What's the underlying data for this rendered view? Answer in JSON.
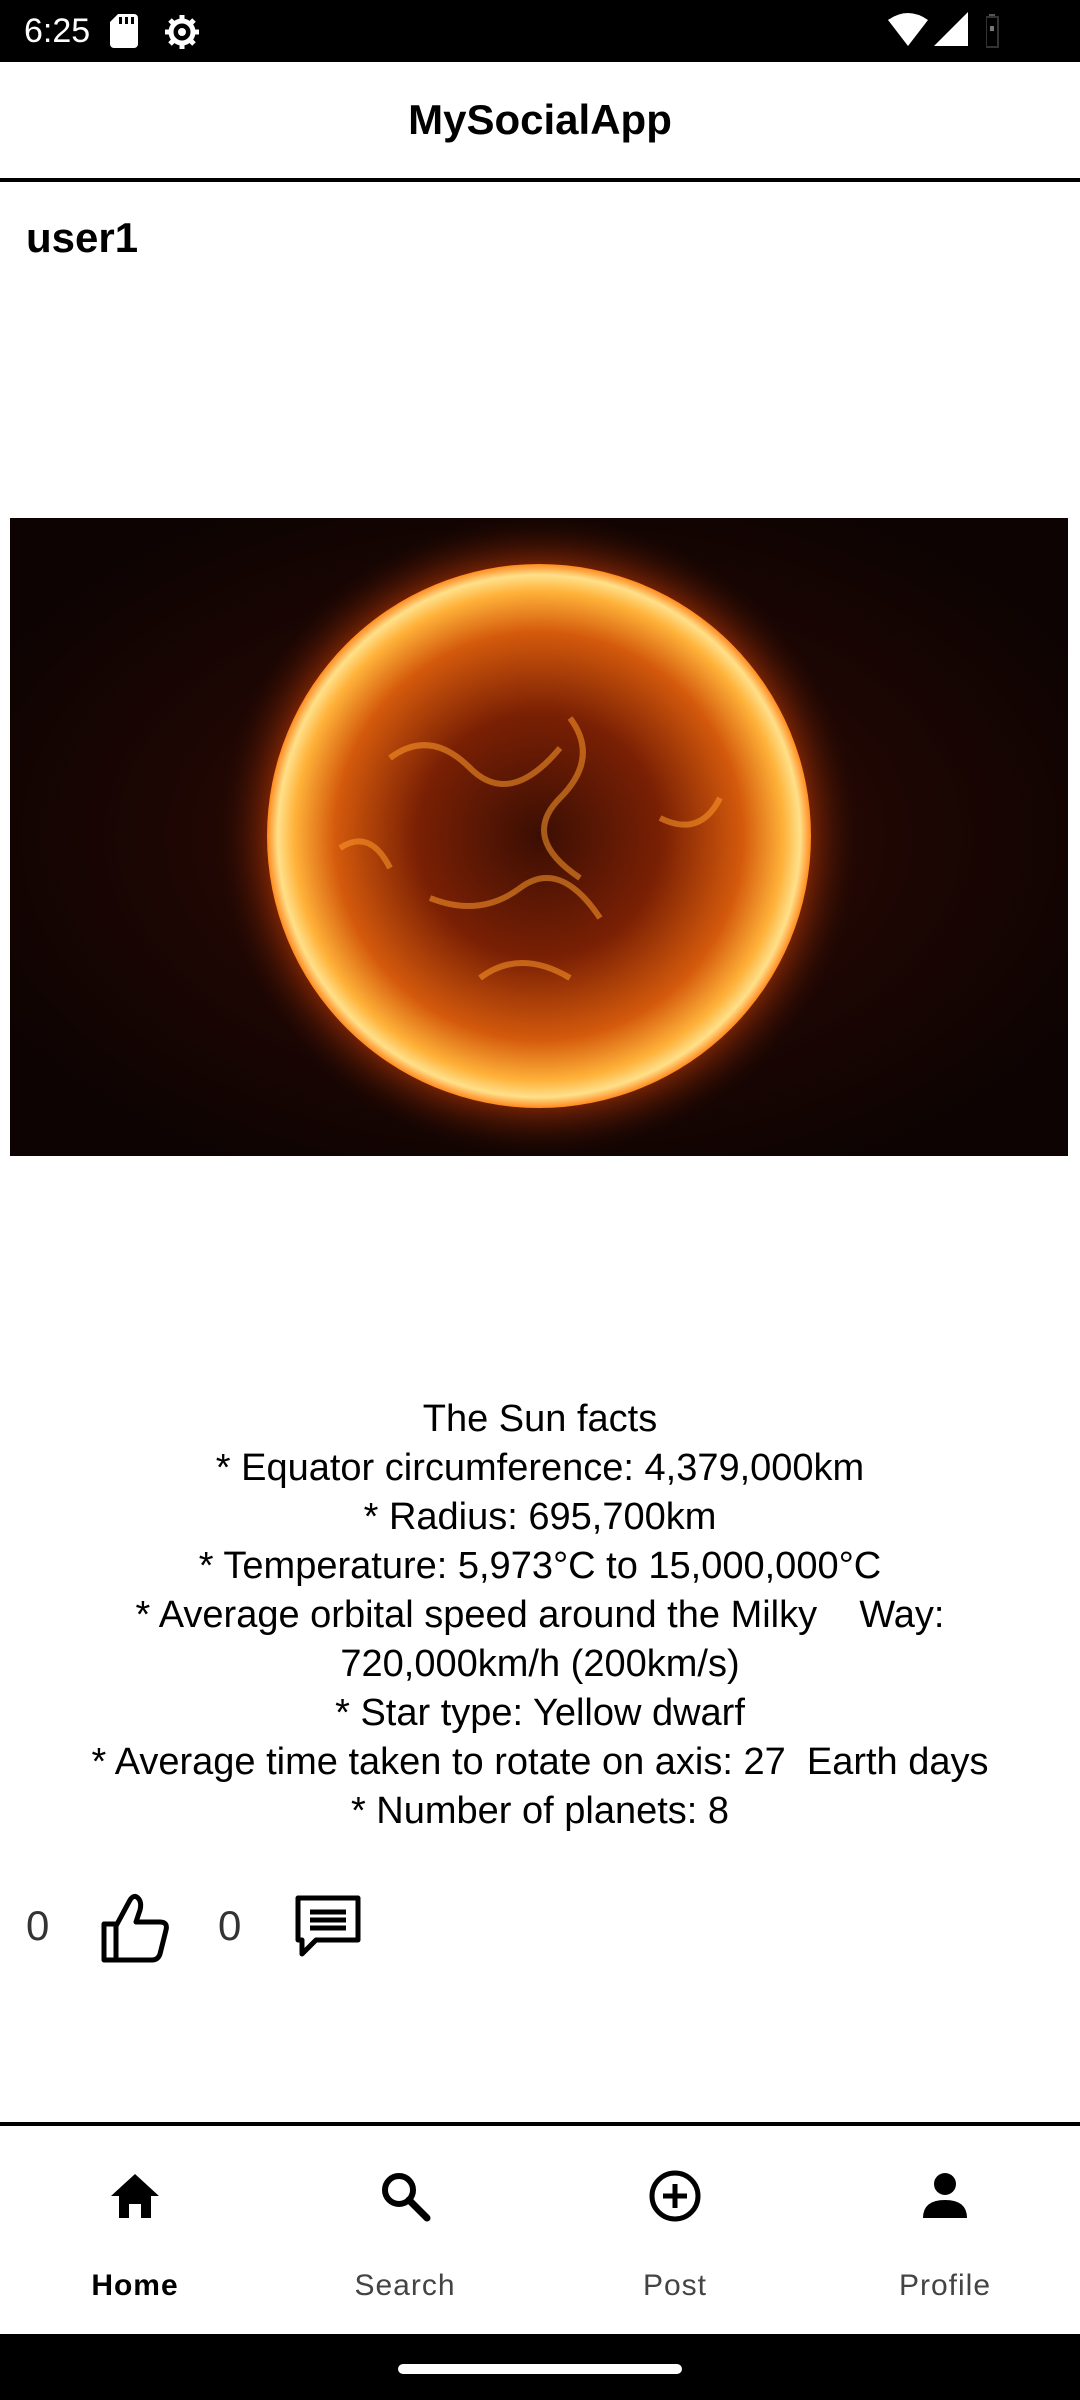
{
  "status_bar": {
    "time": "6:25",
    "icons": [
      "sd-card-icon",
      "gear-icon",
      "wifi-icon",
      "signal-icon",
      "battery-icon"
    ]
  },
  "app_bar": {
    "title": "MySocialApp"
  },
  "post": {
    "author": "user1",
    "image_icon": "sun-image",
    "caption_lines": [
      "The Sun facts",
      "* Equator circumference: 4,379,000km",
      "* Radius: 695,700km",
      "* Temperature: 5,973°C to 15,000,000°C",
      "* Average orbital speed around the Milky    Way:",
      "720,000km/h (200km/s)",
      "* Star type: Yellow dwarf",
      "* Average time taken to rotate on axis: 27  Earth days",
      "* Number of planets: 8"
    ],
    "like_count": "0",
    "comment_count": "0"
  },
  "bottom_nav": {
    "items": [
      {
        "label": "Home",
        "icon": "home-icon",
        "active": true
      },
      {
        "label": "Search",
        "icon": "search-icon",
        "active": false
      },
      {
        "label": "Post",
        "icon": "add-circle-icon",
        "active": false
      },
      {
        "label": "Profile",
        "icon": "person-icon",
        "active": false
      }
    ]
  },
  "colors": {
    "bar_background": "#000000",
    "page_background": "#ffffff",
    "text": "#000000"
  }
}
